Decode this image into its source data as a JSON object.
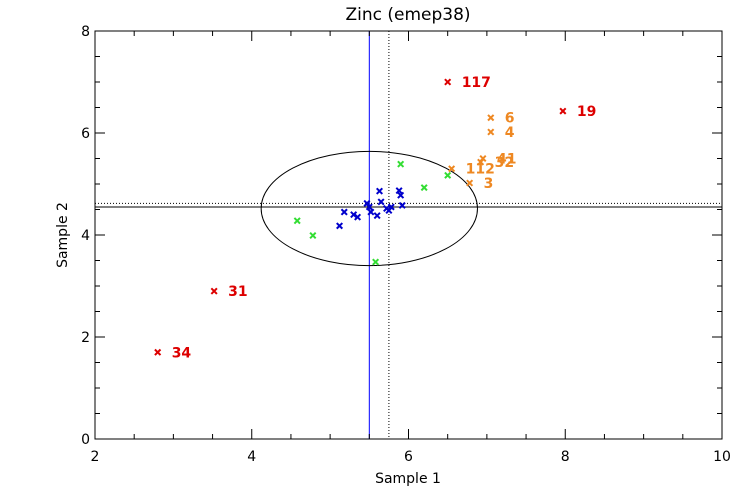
{
  "chart_data": {
    "type": "scatter",
    "title": "Zinc (emep38)",
    "xlabel": "Sample 1",
    "ylabel": "Sample 2",
    "xlim": [
      2,
      10
    ],
    "ylim": [
      0,
      8
    ],
    "x_ticks": [
      2,
      4,
      6,
      8,
      10
    ],
    "y_ticks": [
      0,
      2,
      4,
      6,
      8
    ],
    "x_tick_labels": [
      "2",
      "4",
      "6",
      "8",
      "10"
    ],
    "y_tick_labels": [
      "0",
      "2",
      "4",
      "6",
      "8"
    ],
    "reference_lines": {
      "vertical_solid_x": 5.5,
      "vertical_dotted_x": 5.75,
      "horizontal_solid_y": 4.55,
      "horizontal_dotted_y": 4.62
    },
    "ellipse": {
      "cx": 5.5,
      "cy": 4.52,
      "rx": 1.38,
      "ry": 1.12
    },
    "colors": {
      "ellipse": "#000000",
      "vertical_line": "#0000ff",
      "blue": "#0000cc",
      "green": "#33dd33",
      "orange": "#ee8822",
      "red": "#dd0000"
    },
    "series": [
      {
        "name": "blue",
        "color": "#0000cc",
        "points": [
          {
            "x": 5.12,
            "y": 4.18
          },
          {
            "x": 5.18,
            "y": 4.45
          },
          {
            "x": 5.3,
            "y": 4.4
          },
          {
            "x": 5.35,
            "y": 4.35
          },
          {
            "x": 5.47,
            "y": 4.62
          },
          {
            "x": 5.5,
            "y": 4.55
          },
          {
            "x": 5.52,
            "y": 4.45
          },
          {
            "x": 5.6,
            "y": 4.38
          },
          {
            "x": 5.63,
            "y": 4.86
          },
          {
            "x": 5.65,
            "y": 4.65
          },
          {
            "x": 5.72,
            "y": 4.52
          },
          {
            "x": 5.75,
            "y": 4.48
          },
          {
            "x": 5.78,
            "y": 4.55
          },
          {
            "x": 5.88,
            "y": 4.87
          },
          {
            "x": 5.9,
            "y": 4.78
          },
          {
            "x": 5.92,
            "y": 4.58
          }
        ]
      },
      {
        "name": "green",
        "color": "#33dd33",
        "points": [
          {
            "x": 4.58,
            "y": 4.28
          },
          {
            "x": 4.78,
            "y": 3.99
          },
          {
            "x": 5.58,
            "y": 3.47
          },
          {
            "x": 5.9,
            "y": 5.39
          },
          {
            "x": 6.2,
            "y": 4.93
          },
          {
            "x": 6.5,
            "y": 5.17
          }
        ]
      },
      {
        "name": "orange",
        "color": "#ee8822",
        "points": [
          {
            "x": 6.55,
            "y": 5.3,
            "label": "112"
          },
          {
            "x": 6.78,
            "y": 5.02,
            "label": "3"
          },
          {
            "x": 6.92,
            "y": 5.43,
            "label": "32"
          },
          {
            "x": 6.95,
            "y": 5.5,
            "label": "41"
          },
          {
            "x": 7.05,
            "y": 6.3,
            "label": "6"
          },
          {
            "x": 7.05,
            "y": 6.02,
            "label": "4"
          }
        ]
      },
      {
        "name": "red",
        "color": "#dd0000",
        "points": [
          {
            "x": 2.8,
            "y": 1.7,
            "label": "34"
          },
          {
            "x": 3.52,
            "y": 2.9,
            "label": "31"
          },
          {
            "x": 6.5,
            "y": 7.0,
            "label": "117"
          },
          {
            "x": 7.97,
            "y": 6.43,
            "label": "19"
          }
        ]
      }
    ]
  }
}
